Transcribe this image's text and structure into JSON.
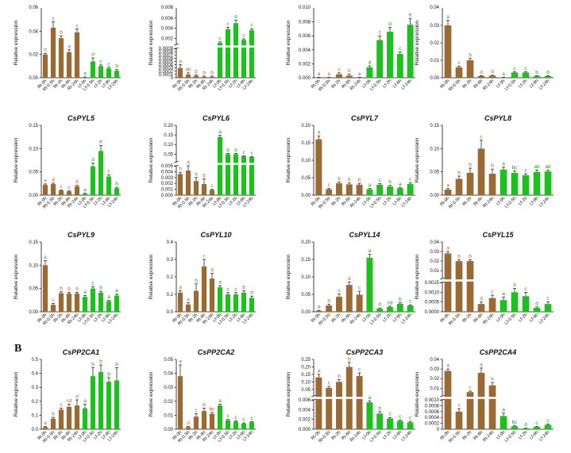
{
  "figure": {
    "section_b": "B"
  },
  "colors": {
    "root": "#9a6a32",
    "leaf": "#1ec01e",
    "axis": "#111111",
    "root_sig": "#9a6a32",
    "leaf_sig": "#1e9a1e"
  },
  "chart_data": [
    {
      "type": "bar",
      "title": "",
      "ylabel": "Relative expression",
      "categories": [
        "Rt-0h",
        "Rt-0.5h",
        "Rt-2h",
        "Rt-6h",
        "Rt-24h",
        "Lf-0h",
        "Lf-0.5h",
        "Lf-2h",
        "Lf-6h",
        "Lf-24h"
      ],
      "values": [
        0.02,
        0.043,
        0.034,
        0.022,
        0.039,
        0.0004,
        0.014,
        0.01,
        0.008,
        0.006
      ],
      "errors": [
        0.001,
        0.005,
        0.002,
        0.002,
        0.003,
        0.0002,
        0.003,
        0.001,
        0.001,
        0.001
      ],
      "letters": [
        "b",
        "c",
        "b",
        "a",
        "c",
        "a",
        "d",
        "c",
        "c",
        "b"
      ],
      "ylim": [
        0,
        0.06
      ],
      "yticks": [
        0,
        0.02,
        0.04
      ],
      "yticklabels": [
        "0.00",
        "0.02",
        "0.04"
      ],
      "partial_top_label": "0.06"
    },
    {
      "type": "bar",
      "title": "",
      "ylabel": "Relative expression",
      "categories": [
        "Rt-0h",
        "Rt-0.5h",
        "Rt-2h",
        "Rt-6h",
        "Rt-24h",
        "Lf-0h",
        "Lf-0.5h",
        "Lf-2h",
        "Lf-6h",
        "Lf-24h"
      ],
      "values": [
        0.0003,
        0.0001,
        6e-05,
        3e-05,
        3e-05,
        0.0011,
        0.0038,
        0.005,
        0.0017,
        0.0036
      ],
      "errors": [
        0.0001,
        5e-05,
        3e-05,
        2e-05,
        2e-05,
        0.0002,
        0.0004,
        0.0006,
        0.0002,
        0.0003
      ],
      "letters": [
        "a",
        "ab",
        "b",
        "b",
        "b",
        "c",
        "c",
        "d",
        "c",
        "c"
      ],
      "ybreak": {
        "lower": [
          0,
          0.0009
        ],
        "upper": [
          0.0008,
          0.008
        ]
      },
      "yticks_lower": [
        0,
        0.0001,
        0.0002,
        0.0003,
        0.0004,
        0.0005,
        0.0006,
        0.0007,
        0.0008,
        0.0009
      ],
      "yticklabels_lower": [
        "0",
        "0.0001",
        "0.0002",
        "0.0003",
        "0.0004",
        "0.0005",
        "0.0006",
        "0.0007",
        "0.0008",
        "0.0009"
      ],
      "yticks_upper": [
        0.002,
        0.004,
        0.006
      ],
      "yticklabels_upper": [
        "0.002",
        "0.004",
        "0.006"
      ],
      "partial_top_label": "0.008"
    },
    {
      "type": "bar",
      "title": "",
      "ylabel": "Relative expression",
      "categories": [
        "Rt-0h",
        "Rt-0.5h",
        "Rt-2h",
        "Rt-6h",
        "Rt-24h",
        "Lf-0h",
        "Lf-0.5h",
        "Lf-2h",
        "Lf-6h",
        "Lf-24h"
      ],
      "values": [
        5e-05,
        5e-05,
        0.0005,
        0.0003,
        5e-05,
        0.0015,
        0.0054,
        0.0066,
        0.0034,
        0.0076
      ],
      "errors": [
        2e-05,
        2e-05,
        0.0002,
        0.0002,
        2e-05,
        0.0002,
        0.0006,
        0.0006,
        0.0003,
        0.0009
      ],
      "letters": [
        "a",
        "a",
        "c",
        "b",
        "a",
        "a",
        "c",
        "d",
        "c",
        "e"
      ],
      "ylim": [
        0,
        0.01
      ],
      "yticks": [
        0,
        0.002,
        0.004,
        0.006,
        0.008
      ],
      "yticklabels": [
        "0.000",
        "0.002",
        "0.004",
        "0.006",
        "0.008"
      ],
      "partial_top_label": "0.010"
    },
    {
      "type": "bar",
      "title": "",
      "ylabel": "Relative expression",
      "categories": [
        "Rt-0h",
        "Rt-0.5h",
        "Rt-2h",
        "Rt-6h",
        "Rt-24h",
        "Lf-0h",
        "Lf-0.5h",
        "Lf-2h",
        "Lf-6h",
        "Lf-24h"
      ],
      "values": [
        0.03,
        0.006,
        0.01,
        0.001,
        0.0012,
        0.0002,
        0.003,
        0.003,
        0.001,
        0.001
      ],
      "errors": [
        0.003,
        0.0007,
        0.001,
        0.0002,
        0.0003,
        0.0001,
        0.0004,
        0.0004,
        0.0002,
        0.0002
      ],
      "letters": [
        "a",
        "c",
        "b",
        "d",
        "d",
        "a",
        "c",
        "c",
        "b",
        "b"
      ],
      "ylim": [
        0,
        0.04
      ],
      "yticks": [
        0,
        0.01,
        0.02,
        0.03
      ],
      "yticklabels": [
        "0.00",
        "0.01",
        "0.02",
        "0.03"
      ],
      "partial_top_label": "0.04"
    },
    {
      "type": "bar",
      "title": "CsPYL5",
      "ylabel": "Relative expression",
      "categories": [
        "Rt-0h",
        "Rt-0.5h",
        "Rt-2h",
        "Rt-6h",
        "Rt-24h",
        "Lf-0h",
        "Lf-0.5h",
        "Lf-2h",
        "Lf-6h",
        "Lf-24h"
      ],
      "values": [
        0.022,
        0.024,
        0.01,
        0.008,
        0.019,
        0.003,
        0.062,
        0.095,
        0.04,
        0.015
      ],
      "errors": [
        0.002,
        0.002,
        0.001,
        0.001,
        0.002,
        0.001,
        0.007,
        0.012,
        0.004,
        0.002
      ],
      "letters": [
        "a",
        "a",
        "c",
        "c",
        "b",
        "a",
        "d",
        "e",
        "c",
        "b"
      ],
      "ylim": [
        0,
        0.15
      ],
      "yticks": [
        0,
        0.05,
        0.1,
        0.15
      ],
      "yticklabels": [
        "0.00",
        "0.05",
        "0.10",
        "0.15"
      ]
    },
    {
      "type": "bar",
      "title": "CsPYL6",
      "ylabel": "Relative expression",
      "categories": [
        "Rt-0h",
        "Rt-0.5h",
        "Rt-2h",
        "Rt-6h",
        "Rt-24h",
        "Lf-0h",
        "Lf-0.5h",
        "Lf-2h",
        "Lf-6h",
        "Lf-24h"
      ],
      "values": [
        0.0036,
        0.0042,
        0.0024,
        0.0019,
        0.0009,
        0.14,
        0.05,
        0.05,
        0.04,
        0.036
      ],
      "errors": [
        0.0003,
        0.0008,
        0.0006,
        0.0009,
        0.0001,
        0.008,
        0.004,
        0.004,
        0.002,
        0.002
      ],
      "letters": [
        "b",
        "a",
        "b",
        "b",
        "c",
        "a",
        "b",
        "b",
        "c",
        "c"
      ],
      "ybreak": {
        "lower": [
          0,
          0.005
        ],
        "upper": [
          0.01,
          0.2
        ]
      },
      "yticks_lower": [
        0,
        0.001,
        0.002,
        0.003,
        0.004,
        0.005
      ],
      "yticklabels_lower": [
        "0.000",
        "0.001",
        "0.002",
        "0.003",
        "0.004",
        "0.005"
      ],
      "yticks_upper": [
        0.05,
        0.1,
        0.15,
        0.2
      ],
      "yticklabels_upper": [
        "0.05",
        "0.10",
        "0.15",
        "0.20"
      ]
    },
    {
      "type": "bar",
      "title": "CsPYL7",
      "ylabel": "Relative expression",
      "categories": [
        "Rt-0h",
        "Rt-0.5h",
        "Rt-2h",
        "Rt-6h",
        "Rt-24h",
        "Lf-0h",
        "Lf-0.5h",
        "Lf-2h",
        "Lf-6h",
        "Lf-24h"
      ],
      "values": [
        0.16,
        0.017,
        0.034,
        0.031,
        0.03,
        0.017,
        0.03,
        0.025,
        0.02,
        0.032
      ],
      "errors": [
        0.01,
        0.002,
        0.004,
        0.004,
        0.004,
        0.002,
        0.003,
        0.003,
        0.002,
        0.003
      ],
      "letters": [
        "a",
        "c",
        "b",
        "b",
        "b",
        "a",
        "c",
        "b",
        "a",
        "c"
      ],
      "ylim": [
        0,
        0.2
      ],
      "yticks": [
        0,
        0.05,
        0.1,
        0.15,
        0.2
      ],
      "yticklabels": [
        "0.00",
        "0.05",
        "0.10",
        "0.15",
        "0.20"
      ]
    },
    {
      "type": "bar",
      "title": "CsPYL8",
      "ylabel": "Relative expression",
      "categories": [
        "Rt-0h",
        "Rt-0.5h",
        "Rt-2h",
        "Rt-6h",
        "Rt-24h",
        "Lf-0h",
        "Lf-0.5h",
        "Lf-2h",
        "Lf-6h",
        "Lf-24h"
      ],
      "values": [
        0.012,
        0.035,
        0.048,
        0.1,
        0.046,
        0.055,
        0.048,
        0.043,
        0.05,
        0.051
      ],
      "errors": [
        0.002,
        0.006,
        0.01,
        0.018,
        0.01,
        0.005,
        0.004,
        0.003,
        0.004,
        0.003
      ],
      "letters": [
        "a",
        "b",
        "b",
        "c",
        "b",
        "a",
        "bc",
        "c",
        "ab",
        "ab"
      ],
      "ylim": [
        0,
        0.15
      ],
      "yticks": [
        0,
        0.05,
        0.1,
        0.15
      ],
      "yticklabels": [
        "0.00",
        "0.05",
        "0.10",
        "0.15"
      ]
    },
    {
      "type": "bar",
      "title": "CsPYL9",
      "ylabel": "Relative expression",
      "categories": [
        "Rt-0h",
        "Rt-0.5h",
        "Rt-2h",
        "Rt-6h",
        "Rt-24h",
        "Lf-0h",
        "Lf-0.5h",
        "Lf-2h",
        "Lf-6h",
        "Lf-24h"
      ],
      "values": [
        0.1,
        0.015,
        0.04,
        0.039,
        0.039,
        0.032,
        0.05,
        0.041,
        0.023,
        0.035
      ],
      "errors": [
        0.01,
        0.003,
        0.003,
        0.003,
        0.003,
        0.003,
        0.004,
        0.003,
        0.002,
        0.003
      ],
      "letters": [
        "a",
        "c",
        "b",
        "b",
        "b",
        "a",
        "c",
        "b",
        "a",
        "a"
      ],
      "ylim": [
        0,
        0.15
      ],
      "yticks": [
        0,
        0.05,
        0.1,
        0.15
      ],
      "yticklabels": [
        "0.00",
        "0.05",
        "0.10",
        "0.15"
      ]
    },
    {
      "type": "bar",
      "title": "CsPYL10",
      "ylabel": "Relative expression",
      "categories": [
        "Rt-0h",
        "Rt-0.5h",
        "Rt-2h",
        "Rt-6h",
        "Rt-24h",
        "Lf-0h",
        "Lf-0.5h",
        "Lf-2h",
        "Lf-6h",
        "Lf-24h"
      ],
      "values": [
        0.11,
        0.042,
        0.12,
        0.26,
        0.19,
        0.14,
        0.1,
        0.1,
        0.11,
        0.08
      ],
      "errors": [
        0.01,
        0.01,
        0.04,
        0.04,
        0.03,
        0.01,
        0.01,
        0.01,
        0.01,
        0.01
      ],
      "letters": [
        "a",
        "a",
        "b",
        "c",
        "d",
        "a",
        "c",
        "c",
        "b",
        "d"
      ],
      "ylim": [
        0,
        0.4
      ],
      "yticks": [
        0,
        0.1,
        0.2,
        0.3,
        0.4
      ],
      "yticklabels": [
        "0.0",
        "0.1",
        "0.2",
        "0.3",
        "0.4"
      ]
    },
    {
      "type": "bar",
      "title": "CsPYL14",
      "ylabel": "Relative expression",
      "categories": [
        "Rt-0h",
        "Rt-0.5h",
        "Rt-2h",
        "Rt-6h",
        "Rt-24h",
        "Lf-0h",
        "Lf-0.5h",
        "Lf-2h",
        "Lf-6h",
        "Lf-24h"
      ],
      "values": [
        0.003,
        0.018,
        0.043,
        0.077,
        0.049,
        0.155,
        0.009,
        0.014,
        0.023,
        0.018
      ],
      "errors": [
        0.001,
        0.004,
        0.008,
        0.008,
        0.01,
        0.01,
        0.002,
        0.002,
        0.003,
        0.002
      ],
      "letters": [
        "a",
        "b",
        "c",
        "d",
        "c",
        "a",
        "d",
        "cd",
        "b",
        "c"
      ],
      "ylim": [
        0,
        0.2
      ],
      "yticks": [
        0,
        0.05,
        0.1,
        0.15,
        0.2
      ],
      "yticklabels": [
        "0.00",
        "0.05",
        "0.10",
        "0.15",
        "0.20"
      ]
    },
    {
      "type": "bar",
      "title": "CsPYL15",
      "ylabel": "Relative expression",
      "categories": [
        "Rt-0h",
        "Rt-0.5h",
        "Rt-2h",
        "Rt-6h",
        "Rt-24h",
        "Lf-0h",
        "Lf-0.5h",
        "Lf-2h",
        "Lf-6h",
        "Lf-24h"
      ],
      "values": [
        0.028,
        0.02,
        0.02,
        0.0004,
        0.0007,
        0.0006,
        0.001,
        0.0008,
        0.0002,
        0.0004
      ],
      "errors": [
        0.002,
        0.0015,
        0.0015,
        0.0001,
        0.00015,
        0.00015,
        0.0002,
        0.0002,
        5e-05,
        0.0001
      ],
      "letters": [
        "a",
        "b",
        "b",
        "d",
        "c",
        "a",
        "b",
        "c",
        "d",
        "c"
      ],
      "ybreak": {
        "lower": [
          0,
          0.0015
        ],
        "upper": [
          0.0018,
          0.04
        ]
      },
      "yticks_lower": [
        0,
        0.0005,
        0.001,
        0.0015
      ],
      "yticklabels_lower": [
        "0.0000",
        "0.0005",
        "0.0010",
        "0.0015"
      ],
      "yticks_upper": [
        0.01,
        0.02,
        0.03,
        0.04
      ],
      "yticklabels_upper": [
        "0.01",
        "0.02",
        "0.03",
        "0.04"
      ]
    },
    {
      "type": "bar",
      "title": "CsPP2CA1",
      "ylabel": "Relative expression",
      "categories": [
        "Rt-0h",
        "Rt-0.5h",
        "Rt-2h",
        "Rt-6h",
        "Rt-24h",
        "Lf-0h",
        "Lf-0.5h",
        "Lf-2h",
        "Lf-6h",
        "Lf-24h"
      ],
      "values": [
        0.015,
        0.075,
        0.14,
        0.16,
        0.17,
        0.15,
        0.38,
        0.41,
        0.34,
        0.35
      ],
      "errors": [
        0.005,
        0.01,
        0.01,
        0.02,
        0.04,
        0.03,
        0.06,
        0.05,
        0.03,
        0.09
      ],
      "letters": [
        "a",
        "b",
        "c",
        "cd",
        "d",
        "a",
        "b",
        "b",
        "b",
        "b"
      ],
      "ylim": [
        0,
        0.5
      ],
      "yticks": [
        0,
        0.1,
        0.2,
        0.3,
        0.4,
        0.5
      ],
      "yticklabels": [
        "0.0",
        "0.1",
        "0.2",
        "0.3",
        "0.4",
        "0.5"
      ]
    },
    {
      "type": "bar",
      "title": "CsPP2CA2",
      "ylabel": "Relative expression",
      "categories": [
        "Rt-0h",
        "Rt-0.5h",
        "Rt-2h",
        "Rt-6h",
        "Rt-24h",
        "Lf-0h",
        "Lf-0.5h",
        "Lf-2h",
        "Lf-6h",
        "Lf-24h"
      ],
      "values": [
        0.038,
        0.0015,
        0.009,
        0.013,
        0.011,
        0.017,
        0.0065,
        0.0055,
        0.004,
        0.005
      ],
      "errors": [
        0.008,
        0.0005,
        0.002,
        0.002,
        0.001,
        0.001,
        0.0005,
        0.0005,
        0.0005,
        0.0005
      ],
      "letters": [
        "a",
        "d",
        "c",
        "b",
        "bc",
        "a",
        "c",
        "c",
        "c",
        "c"
      ],
      "ylim": [
        0,
        0.05
      ],
      "yticks": [
        0,
        0.01,
        0.02,
        0.03,
        0.04,
        0.05
      ],
      "yticklabels": [
        "0.00",
        "0.01",
        "0.02",
        "0.03",
        "0.04",
        "0.05"
      ]
    },
    {
      "type": "bar",
      "title": "CsPP2CA3",
      "ylabel": "Relative expression",
      "categories": [
        "Rt-0h",
        "Rt-0.5h",
        "Rt-2h",
        "Rt-6h",
        "Rt-24h",
        "Lf-0h",
        "Lf-0.5h",
        "Lf-2h",
        "Lf-6h",
        "Lf-24h"
      ],
      "values": [
        0.13,
        0.06,
        0.1,
        0.2,
        0.14,
        0.0055,
        0.0032,
        0.0022,
        0.0017,
        0.0014
      ],
      "errors": [
        0.02,
        0.01,
        0.015,
        0.03,
        0.02,
        0.0003,
        0.0004,
        0.0002,
        0.0002,
        0.0002
      ],
      "letters": [
        "a",
        "c",
        "b",
        "b",
        "c",
        "a",
        "b",
        "c",
        "c",
        "c"
      ],
      "ybreak": {
        "lower": [
          0,
          0.006
        ],
        "upper": [
          0.007,
          0.25
        ]
      },
      "yticks_lower": [
        0,
        0.002,
        0.004,
        0.006
      ],
      "yticklabels_lower": [
        "0.000",
        "0.002",
        "0.004",
        "0.006"
      ],
      "yticks_upper": [
        0.05,
        0.1,
        0.15,
        0.2,
        0.25
      ],
      "yticklabels_upper": [
        "0.05",
        "0.10",
        "0.15",
        "0.20",
        "0.25"
      ]
    },
    {
      "type": "bar",
      "title": "CsPP2CA4",
      "ylabel": "Relative expression",
      "categories": [
        "Rt-0h",
        "Rt-0.5h",
        "Rt-2h",
        "Rt-6h",
        "Rt-24h",
        "Lf-0h",
        "Lf-0.5h",
        "Lf-2h",
        "Lf-6h",
        "Lf-24h"
      ],
      "values": [
        0.028,
        0.0006,
        0.006,
        0.026,
        0.013,
        0.00045,
        0.0001,
        3e-05,
        8e-05,
        0.00015
      ],
      "errors": [
        0.002,
        0.0001,
        0.001,
        0.005,
        0.003,
        0.0001,
        2e-05,
        1e-05,
        2e-05,
        3e-05
      ],
      "letters": [
        "a",
        "c",
        "c",
        "a",
        "b",
        "a",
        "bc",
        "d",
        "c",
        "c"
      ],
      "ybreak": {
        "lower": [
          0,
          0.001
        ],
        "upper": [
          0.002,
          0.04
        ]
      },
      "yticks_lower": [
        0,
        0.0002,
        0.0004,
        0.0006,
        0.0008,
        0.001
      ],
      "yticklabels_lower": [
        "0",
        "0.0002",
        "0.0004",
        "0.0006",
        "0.0008",
        "0.0010"
      ],
      "yticks_upper": [
        0.01,
        0.02,
        0.03,
        0.04
      ],
      "yticklabels_upper": [
        "0.01",
        "0.02",
        "0.03",
        "0.04"
      ]
    }
  ]
}
